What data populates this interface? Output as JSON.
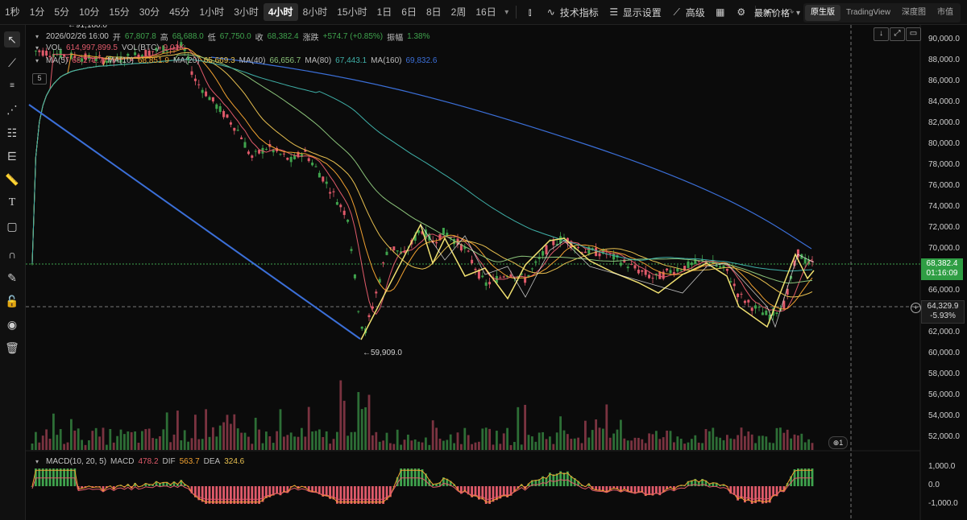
{
  "toolbar": {
    "timeframes": [
      "1秒",
      "1分",
      "5分",
      "10分",
      "15分",
      "30分",
      "45分",
      "1小时",
      "3小时",
      "4小时",
      "8小时",
      "15小时",
      "1日",
      "6日",
      "8日",
      "2周",
      "16日"
    ],
    "active_timeframe": "4小时",
    "indicators_label": "技术指标",
    "display_settings_label": "显示设置",
    "advanced_label": "高级",
    "price_type_label": "最新价格",
    "view_tabs": [
      "原生版",
      "TradingView",
      "深度图",
      "市值"
    ],
    "active_view": "原生版"
  },
  "ohlc": {
    "date": "2026/02/26 16:00",
    "open_label": "开",
    "open": "67,807.8",
    "high_label": "高",
    "high": "68,688.0",
    "low_label": "低",
    "low": "67,750.0",
    "close_label": "收",
    "close": "68,382.4",
    "change_label": "涨跌",
    "change": "+574.7 (+0.85%)",
    "amp_label": "振幅",
    "amp": "1.38%"
  },
  "vol_legend": {
    "vol_label": "VOL",
    "vol": "614,997,899.5",
    "vol_btc_label": "VOL(BTC)",
    "vol_btc": "9.01K"
  },
  "ma_legend": [
    {
      "label": "MA(5)",
      "value": "68,271.7",
      "color": "#e05a6a"
    },
    {
      "label": "MA(10)",
      "value": "68,851.9",
      "color": "#f0a030"
    },
    {
      "label": "MA(20)",
      "value": "65,669.3",
      "color": "#e8c050"
    },
    {
      "label": "MA(40)",
      "value": "66,656.7",
      "color": "#8bc37a"
    },
    {
      "label": "MA(80)",
      "value": "67,443.1",
      "color": "#3fb0a8"
    },
    {
      "label": "MA(160)",
      "value": "69,832.6",
      "color": "#3b6fd8"
    }
  ],
  "collapse_count": "5",
  "macd_legend": {
    "label": "MACD(10, 20, 5)",
    "macd_label": "MACD",
    "macd": "478.2",
    "dif_label": "DIF",
    "dif": "563.7",
    "dea_label": "DEA",
    "dea": "324.6"
  },
  "price_axis": [
    "90,000.0",
    "88,000.0",
    "86,000.0",
    "84,000.0",
    "82,000.0",
    "80,000.0",
    "78,000.0",
    "76,000.0",
    "74,000.0",
    "72,000.0",
    "70,000.0",
    "66,000.0",
    "62,000.0",
    "60,000.0",
    "58,000.0",
    "56,000.0",
    "54,000.0",
    "52,000.0"
  ],
  "macd_axis": [
    "1,000.0",
    "0.0",
    "-1,000.0"
  ],
  "current_price": {
    "value": "68,382.4",
    "countdown": "01:16:09"
  },
  "crosshair_price": {
    "value": "64,329.9",
    "pct": "-5.93%"
  },
  "annotations": {
    "high_mark": "91,180.0",
    "low_mark": "59,909.0"
  },
  "indicator_count": "1",
  "colors": {
    "up": "#3fa34d",
    "down": "#e05a6a",
    "trendline": "#3b6fd8",
    "zigzag": "#f0e070"
  }
}
